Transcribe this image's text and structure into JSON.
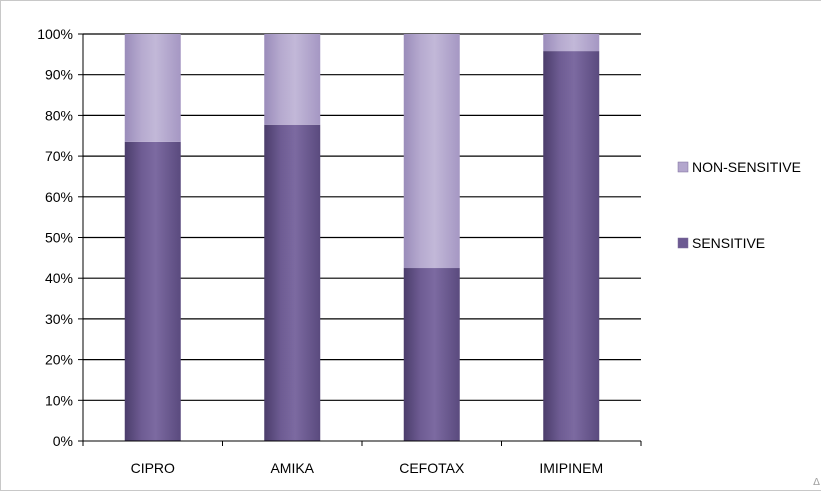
{
  "chart_data": {
    "type": "bar",
    "stacked": true,
    "percent": true,
    "categories": [
      "CIPRO",
      "AMIKA",
      "CEFOTAX",
      "IMIPINEM"
    ],
    "series": [
      {
        "name": "SENSITIVE",
        "values": [
          73.5,
          77.7,
          42.5,
          95.8
        ],
        "color": "#6c5a92"
      },
      {
        "name": "NON-SENSITIVE",
        "values": [
          26.5,
          22.3,
          57.5,
          4.2
        ],
        "color": "#b3a6cd"
      }
    ],
    "ylim": [
      0,
      100
    ],
    "yticks": [
      "0%",
      "10%",
      "20%",
      "30%",
      "40%",
      "50%",
      "60%",
      "70%",
      "80%",
      "90%",
      "100%"
    ],
    "grid": true,
    "legend_position": "right",
    "legend_order": [
      "NON-SENSITIVE",
      "SENSITIVE"
    ]
  }
}
